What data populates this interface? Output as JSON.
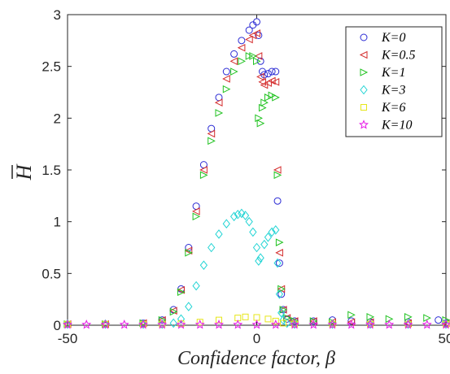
{
  "chart_data": {
    "type": "scatter",
    "title": "",
    "xlabel": "Confidence factor, β",
    "ylabel": "H",
    "ylabel_overline": true,
    "xlim": [
      -50,
      50
    ],
    "ylim": [
      0,
      3
    ],
    "xticks": [
      "-50",
      "0",
      "50"
    ],
    "yticks": [
      "0",
      "0.5",
      "1",
      "1.5",
      "2",
      "2.5",
      "3"
    ],
    "grid": false,
    "legend_position": "top-right",
    "series": [
      {
        "name": "K=0",
        "marker": "circle",
        "color": "#2b2bd4",
        "x": [
          -50,
          -40,
          -30,
          -25,
          -22,
          -20,
          -18,
          -16,
          -14,
          -12,
          -10,
          -8,
          -6,
          -4,
          -2,
          -1,
          0,
          0.5,
          1,
          1.5,
          2,
          3,
          4,
          5,
          5.5,
          6,
          6.5,
          7,
          8,
          10,
          15,
          20,
          25,
          30,
          40,
          48,
          50
        ],
        "y": [
          0.01,
          0.01,
          0.02,
          0.05,
          0.15,
          0.35,
          0.75,
          1.15,
          1.55,
          1.9,
          2.2,
          2.45,
          2.62,
          2.75,
          2.85,
          2.9,
          2.93,
          2.8,
          2.55,
          2.45,
          2.42,
          2.43,
          2.45,
          2.45,
          1.2,
          0.6,
          0.3,
          0.15,
          0.06,
          0.04,
          0.04,
          0.05,
          0.04,
          0.03,
          0.03,
          0.05,
          0.02
        ]
      },
      {
        "name": "K=0.5",
        "marker": "triangle-left",
        "color": "#d42b2b",
        "x": [
          -50,
          -40,
          -30,
          -25,
          -22,
          -20,
          -18,
          -16,
          -14,
          -12,
          -10,
          -8,
          -6,
          -4,
          -2,
          -1,
          0,
          0.5,
          1,
          1.5,
          2,
          3,
          4,
          5,
          5.5,
          6,
          6.5,
          7,
          8,
          10,
          15,
          20,
          25,
          30,
          40,
          50
        ],
        "y": [
          0.01,
          0.01,
          0.02,
          0.05,
          0.14,
          0.34,
          0.72,
          1.1,
          1.5,
          1.85,
          2.15,
          2.38,
          2.55,
          2.68,
          2.76,
          2.8,
          2.82,
          2.6,
          2.4,
          2.35,
          2.32,
          2.34,
          2.36,
          2.35,
          1.5,
          0.7,
          0.35,
          0.15,
          0.07,
          0.04,
          0.04,
          0.03,
          0.03,
          0.03,
          0.02,
          0.02
        ]
      },
      {
        "name": "K=1",
        "marker": "triangle-right",
        "color": "#22c322",
        "x": [
          -50,
          -40,
          -30,
          -25,
          -22,
          -20,
          -18,
          -16,
          -14,
          -12,
          -10,
          -8,
          -6,
          -4,
          -2,
          -1,
          0,
          0.5,
          1,
          1.5,
          2,
          3,
          4,
          5,
          5.5,
          6,
          6.5,
          7,
          8,
          10,
          15,
          20,
          25,
          30,
          35,
          40,
          45,
          50
        ],
        "y": [
          0.01,
          0.01,
          0.02,
          0.05,
          0.13,
          0.32,
          0.7,
          1.05,
          1.45,
          1.78,
          2.05,
          2.28,
          2.45,
          2.55,
          2.6,
          2.6,
          2.55,
          2.0,
          1.95,
          2.1,
          2.15,
          2.2,
          2.22,
          2.2,
          1.45,
          0.8,
          0.35,
          0.15,
          0.07,
          0.04,
          0.04,
          0.03,
          0.1,
          0.08,
          0.06,
          0.08,
          0.07,
          0.05
        ]
      },
      {
        "name": "K=3",
        "marker": "diamond",
        "color": "#22d4d4",
        "x": [
          -50,
          -40,
          -30,
          -25,
          -22,
          -20,
          -18,
          -16,
          -14,
          -12,
          -10,
          -8,
          -6,
          -5,
          -4,
          -3,
          -2,
          -1,
          0,
          0.5,
          1,
          2,
          3,
          4,
          5,
          5.5,
          6,
          6.5,
          7,
          8,
          10,
          20,
          30,
          40,
          50
        ],
        "y": [
          0.01,
          0.01,
          0.01,
          0.01,
          0.02,
          0.06,
          0.18,
          0.38,
          0.58,
          0.75,
          0.88,
          0.98,
          1.05,
          1.07,
          1.08,
          1.06,
          1.0,
          0.9,
          0.75,
          0.62,
          0.65,
          0.78,
          0.85,
          0.9,
          0.92,
          0.6,
          0.3,
          0.12,
          0.05,
          0.02,
          0.01,
          0.01,
          0.01,
          0.01,
          0.01
        ]
      },
      {
        "name": "K=6",
        "marker": "square",
        "color": "#e6e61a",
        "x": [
          -50,
          -40,
          -30,
          -25,
          -20,
          -15,
          -10,
          -5,
          -3,
          0,
          3,
          5,
          7,
          10,
          20,
          30,
          40,
          50
        ],
        "y": [
          0.01,
          0.01,
          0.01,
          0.01,
          0.015,
          0.03,
          0.05,
          0.07,
          0.08,
          0.075,
          0.06,
          0.04,
          0.02,
          0.01,
          0.01,
          0.01,
          0.01,
          0.01
        ]
      },
      {
        "name": "K=10",
        "marker": "star",
        "color": "#e61ae6",
        "x": [
          -50,
          -45,
          -40,
          -35,
          -30,
          -25,
          -20,
          -15,
          -10,
          -5,
          0,
          5,
          10,
          15,
          20,
          25,
          30,
          35,
          40,
          45,
          50
        ],
        "y": [
          0.005,
          0.005,
          0.005,
          0.005,
          0.005,
          0.005,
          0.005,
          0.005,
          0.005,
          0.005,
          0.005,
          0.005,
          0.005,
          0.005,
          0.005,
          0.005,
          0.005,
          0.005,
          0.005,
          0.005,
          0.005
        ]
      }
    ]
  }
}
